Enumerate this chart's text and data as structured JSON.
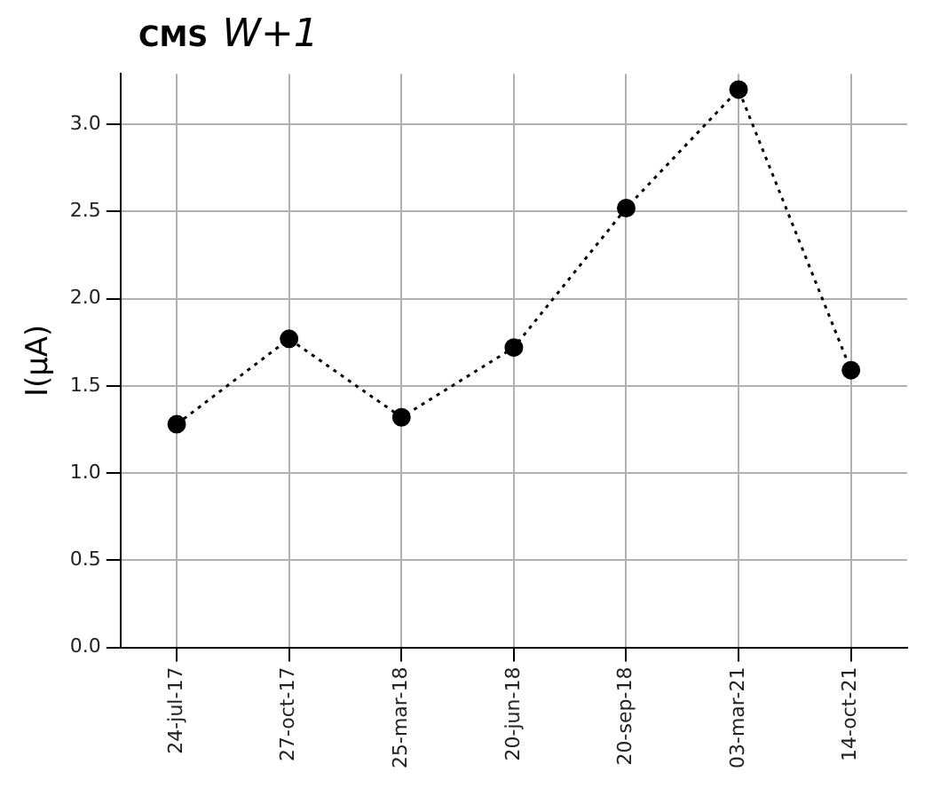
{
  "chart_data": {
    "type": "line",
    "title": "CMS W+1",
    "ylabel": "I(μA)",
    "categories": [
      "24-jul-17",
      "27-oct-17",
      "25-mar-18",
      "20-jun-18",
      "20-sep-18",
      "03-mar-21",
      "14-oct-21"
    ],
    "series": [
      {
        "color": "#000000",
        "values": [
          1.28,
          1.77,
          1.32,
          1.72,
          2.52,
          3.2,
          1.59
        ]
      }
    ],
    "ylim": [
      0,
      3.29
    ],
    "yticks": [
      {
        "value": 0,
        "label": "0.0"
      },
      0.5,
      {
        "value": 1,
        "label": "1.0"
      },
      1.5,
      {
        "value": 2,
        "label": "2.0"
      },
      2.5,
      {
        "value": 3,
        "label": "3.0"
      }
    ],
    "grid": true,
    "marker": "circle",
    "line_style": "dotted"
  }
}
